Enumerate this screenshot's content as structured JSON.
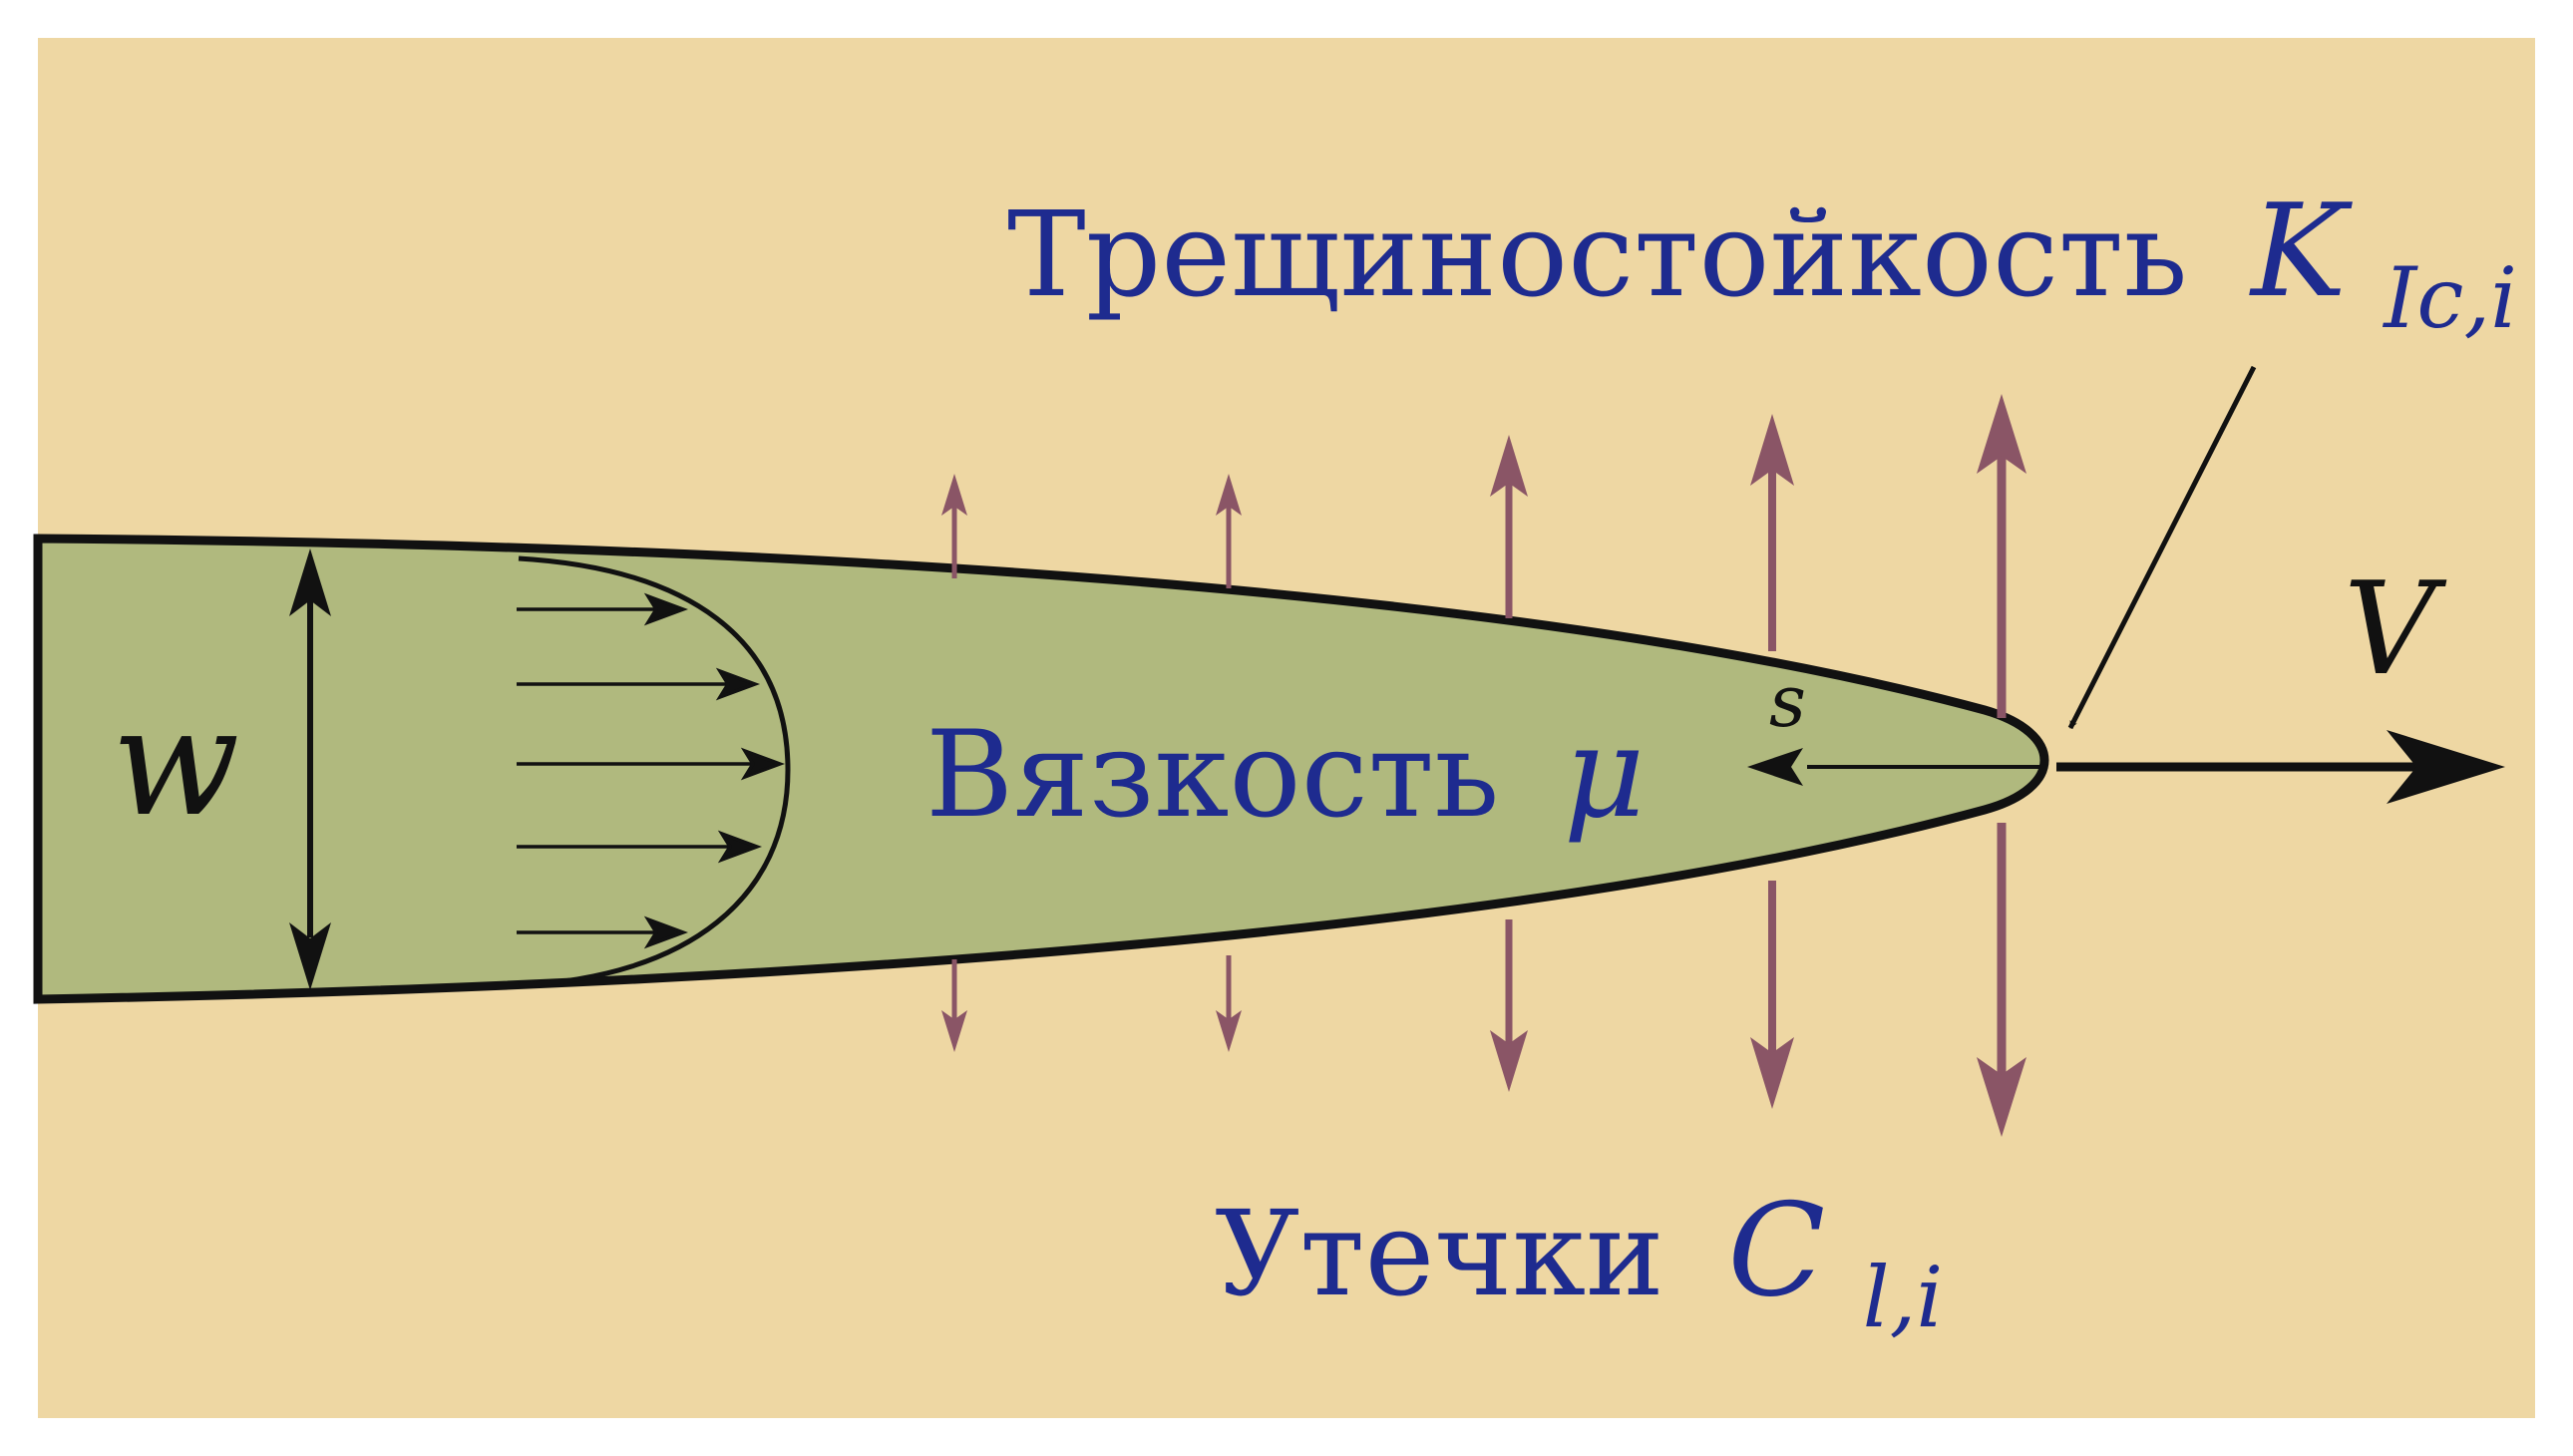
{
  "colors": {
    "background": "#eed7a3",
    "frame_border": "#ffffff",
    "fracture_fill": "#b0b97e",
    "outline": "#111111",
    "leakoff_arrow": "#8a5566",
    "text_blue": "#1e2b8f"
  },
  "labels": {
    "toughness_text": "Трещиностойкость",
    "toughness_symbol": "K",
    "toughness_sub": "Ic,i",
    "viscosity_text": "Вязкость",
    "viscosity_symbol": "μ",
    "leakoff_text": "Утечки",
    "leakoff_symbol": "C",
    "leakoff_sub": "l,i",
    "width_symbol": "w",
    "velocity_symbol": "V",
    "coordinate_symbol": "s"
  },
  "icons": {
    "width_arrow": "double-headed-arrow",
    "velocity_arrow": "arrow-right",
    "coordinate_arrow": "arrow-left",
    "toughness_pointer": "arrow-down-left",
    "leakoff_arrows": "double-headed-arrow",
    "velocity_profile": "parabolic-profile"
  }
}
